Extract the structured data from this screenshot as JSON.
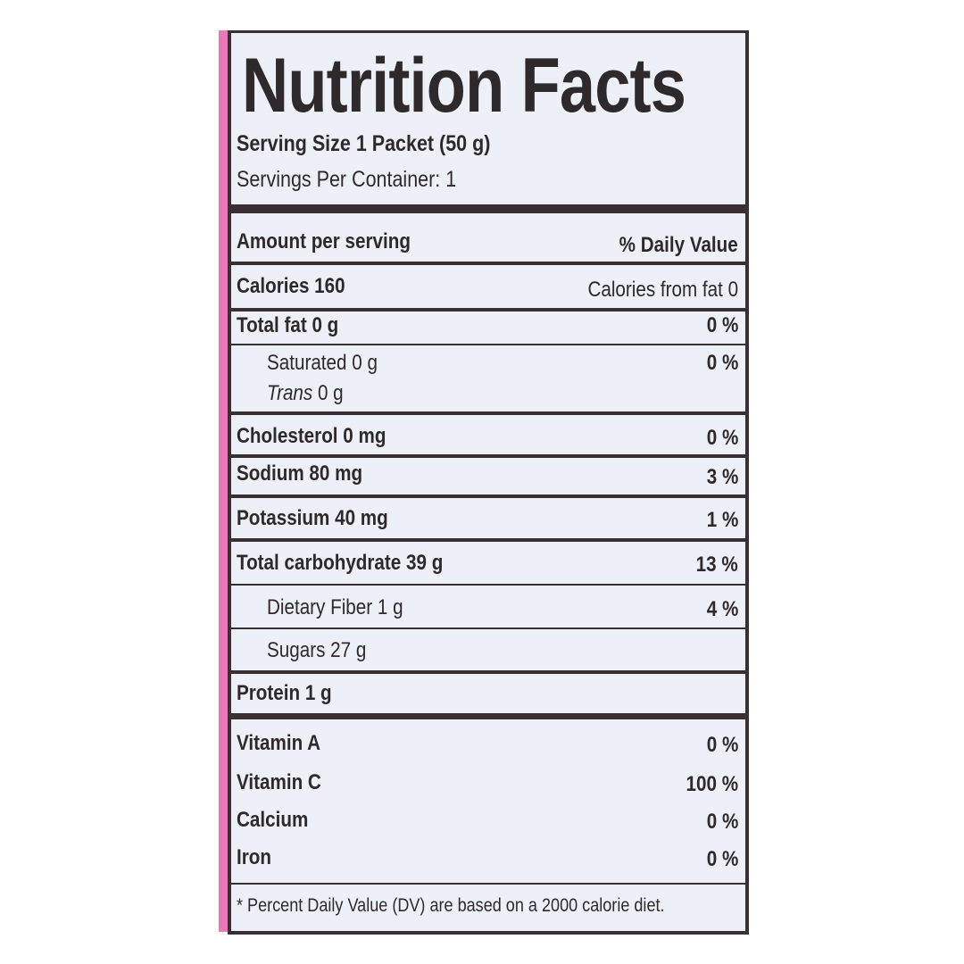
{
  "title": "Nutrition Facts",
  "serving_size": "Serving Size 1 Packet (50 g)",
  "servings_per_container": "Servings Per Container: 1",
  "header": {
    "amount": "Amount per serving",
    "daily_value": "% Daily Value"
  },
  "calories": {
    "label": "Calories 160",
    "from_fat": "Calories from fat 0"
  },
  "nutrients": [
    {
      "label": "Total fat 0 g",
      "dv": "0 %"
    },
    {
      "label": "Saturated 0 g",
      "dv": "0 %"
    },
    {
      "label_italic": "Trans",
      "label": " 0 g"
    },
    {
      "label": "Cholesterol 0 mg",
      "dv": "0 %"
    },
    {
      "label": "Sodium 80 mg",
      "dv": "3 %"
    },
    {
      "label": "Potassium 40 mg",
      "dv": "1 %"
    },
    {
      "label": "Total carbohydrate 39 g",
      "dv": "13 %"
    },
    {
      "label": "Dietary Fiber 1 g",
      "dv": "4 %"
    },
    {
      "label": "Sugars 27 g"
    },
    {
      "label": "Protein 1 g"
    }
  ],
  "vitamins": [
    {
      "label": "Vitamin A",
      "dv": "0 %"
    },
    {
      "label": "Vitamin C",
      "dv": "100 %"
    },
    {
      "label": "Calcium",
      "dv": "0 %"
    },
    {
      "label": "Iron",
      "dv": "0 %"
    }
  ],
  "footnote": "* Percent Daily Value (DV) are based on a 2000 calorie diet.",
  "colors": {
    "edge": "#e878b8",
    "ink": "#2e2a2c",
    "panel": "#eef0f8"
  }
}
